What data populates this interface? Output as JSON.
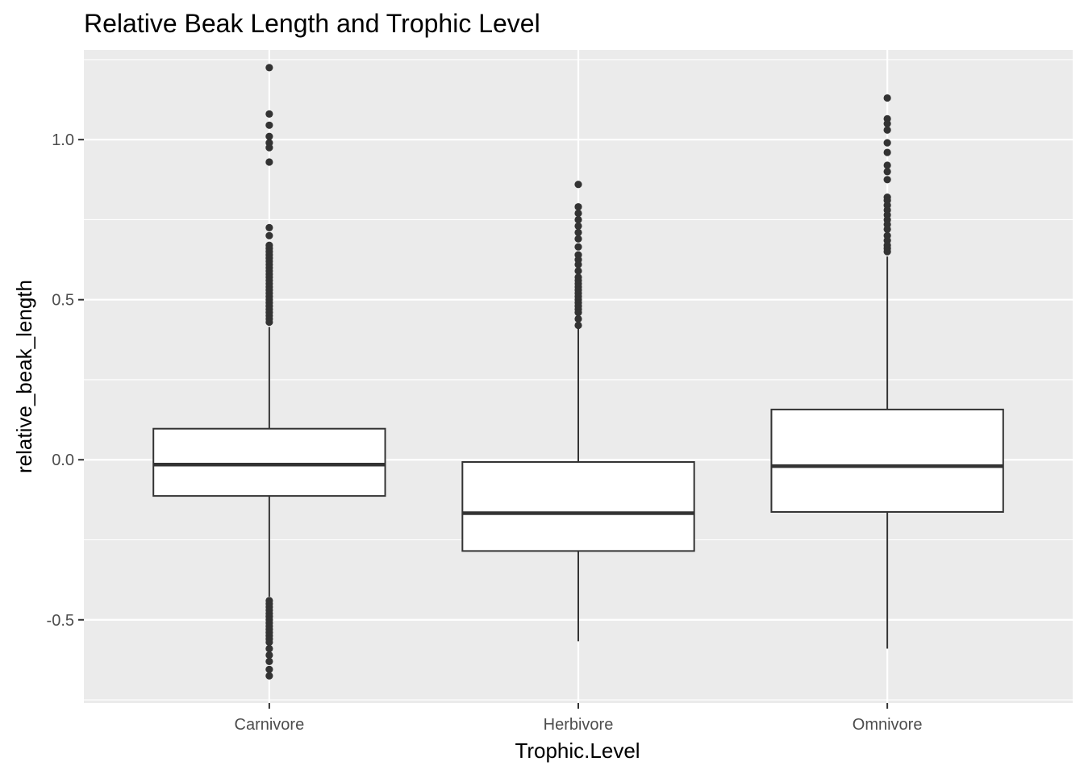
{
  "chart_data": {
    "type": "boxplot",
    "title": "Relative Beak Length and Trophic Level",
    "xlabel": "Trophic.Level",
    "ylabel": "relative_beak_length",
    "categories": [
      "Carnivore",
      "Herbivore",
      "Omnivore"
    ],
    "ylim": [
      -0.76,
      1.28
    ],
    "yticks": [
      -0.5,
      0.0,
      0.5,
      1.0
    ],
    "ytick_labels": [
      "-0.5",
      "0.0",
      "0.5",
      "1.0"
    ],
    "grid": true,
    "legend": "none",
    "colors": {
      "panel_background": "#ebebeb",
      "grid": "#ffffff",
      "box_fill": "#ffffff",
      "box_line": "#333333",
      "outlier": "#333333"
    },
    "boxes": [
      {
        "category": "Carnivore",
        "q1": -0.113,
        "median": -0.015,
        "q3": 0.097,
        "whisker_low": -0.428,
        "whisker_high": 0.415,
        "outliers": [
          1.225,
          1.08,
          1.045,
          1.01,
          0.99,
          0.975,
          0.93,
          0.725,
          0.7,
          0.67,
          0.66,
          0.65,
          0.64,
          0.63,
          0.62,
          0.61,
          0.6,
          0.59,
          0.58,
          0.57,
          0.56,
          0.55,
          0.54,
          0.53,
          0.52,
          0.51,
          0.5,
          0.49,
          0.48,
          0.47,
          0.46,
          0.45,
          0.44,
          0.43,
          -0.44,
          -0.45,
          -0.46,
          -0.47,
          -0.48,
          -0.49,
          -0.5,
          -0.51,
          -0.52,
          -0.53,
          -0.54,
          -0.55,
          -0.56,
          -0.57,
          -0.59,
          -0.61,
          -0.63,
          -0.655,
          -0.675
        ]
      },
      {
        "category": "Herbivore",
        "q1": -0.285,
        "median": -0.167,
        "q3": -0.007,
        "whisker_low": -0.567,
        "whisker_high": 0.41,
        "outliers": [
          0.86,
          0.79,
          0.77,
          0.75,
          0.73,
          0.71,
          0.69,
          0.665,
          0.64,
          0.625,
          0.61,
          0.59,
          0.57,
          0.56,
          0.55,
          0.54,
          0.53,
          0.52,
          0.51,
          0.5,
          0.49,
          0.48,
          0.47,
          0.46,
          0.44,
          0.42
        ]
      },
      {
        "category": "Omnivore",
        "q1": -0.163,
        "median": -0.02,
        "q3": 0.157,
        "whisker_low": -0.59,
        "whisker_high": 0.635,
        "outliers": [
          1.13,
          1.065,
          1.05,
          1.03,
          0.99,
          0.96,
          0.92,
          0.9,
          0.875,
          0.82,
          0.81,
          0.795,
          0.78,
          0.765,
          0.75,
          0.735,
          0.72,
          0.7,
          0.685,
          0.67,
          0.66,
          0.65
        ]
      }
    ]
  }
}
